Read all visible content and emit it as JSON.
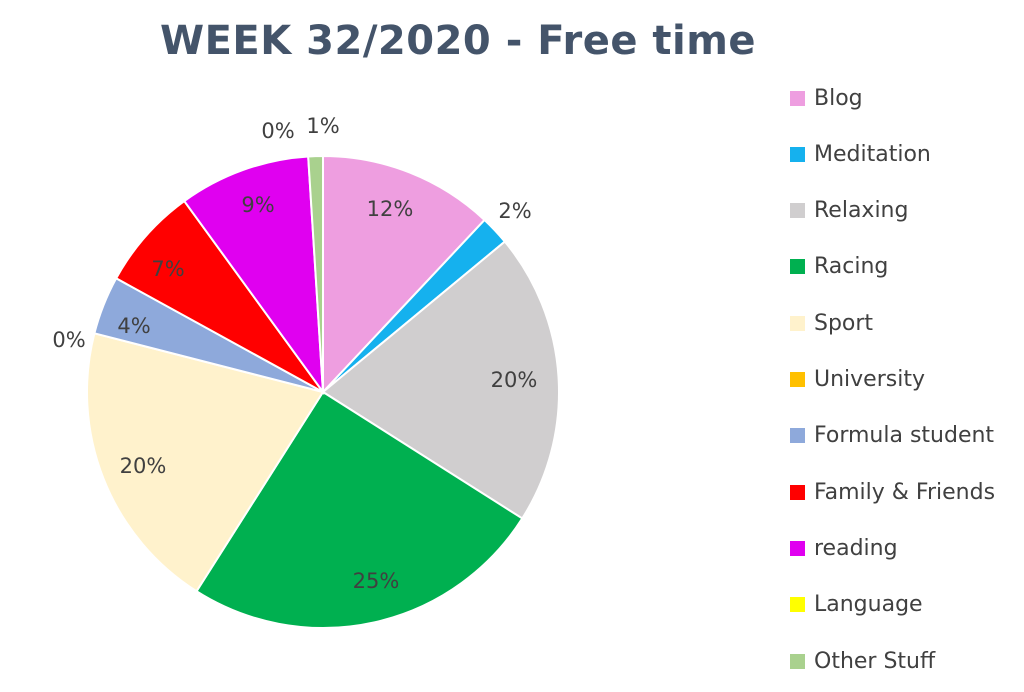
{
  "chart_data": {
    "type": "pie",
    "title": "WEEK 32/2020 - Free time",
    "legend_position": "right",
    "slices": [
      {
        "name": "Blog",
        "value": 12,
        "label": "12%",
        "color": "#EE9EE0"
      },
      {
        "name": "Meditation",
        "value": 2,
        "label": "2%",
        "color": "#15B1EE"
      },
      {
        "name": "Relaxing",
        "value": 20,
        "label": "20%",
        "color": "#D0CECF"
      },
      {
        "name": "Racing",
        "value": 25,
        "label": "25%",
        "color": "#00B050"
      },
      {
        "name": "Sport",
        "value": 20,
        "label": "20%",
        "color": "#FFF2CC"
      },
      {
        "name": "University",
        "value": 0,
        "label": "0%",
        "color": "#FFC000"
      },
      {
        "name": "Formula student",
        "value": 4,
        "label": "4%",
        "color": "#8EA9DB"
      },
      {
        "name": "Family & Friends",
        "value": 7,
        "label": "7%",
        "color": "#FF0000"
      },
      {
        "name": "reading",
        "value": 9,
        "label": "9%",
        "color": "#E000F0"
      },
      {
        "name": "Language",
        "value": 0,
        "label": "0%",
        "color": "#FFFF00"
      },
      {
        "name": "Other Stuff",
        "value": 1,
        "label": "1%",
        "color": "#A9D18E"
      }
    ]
  }
}
